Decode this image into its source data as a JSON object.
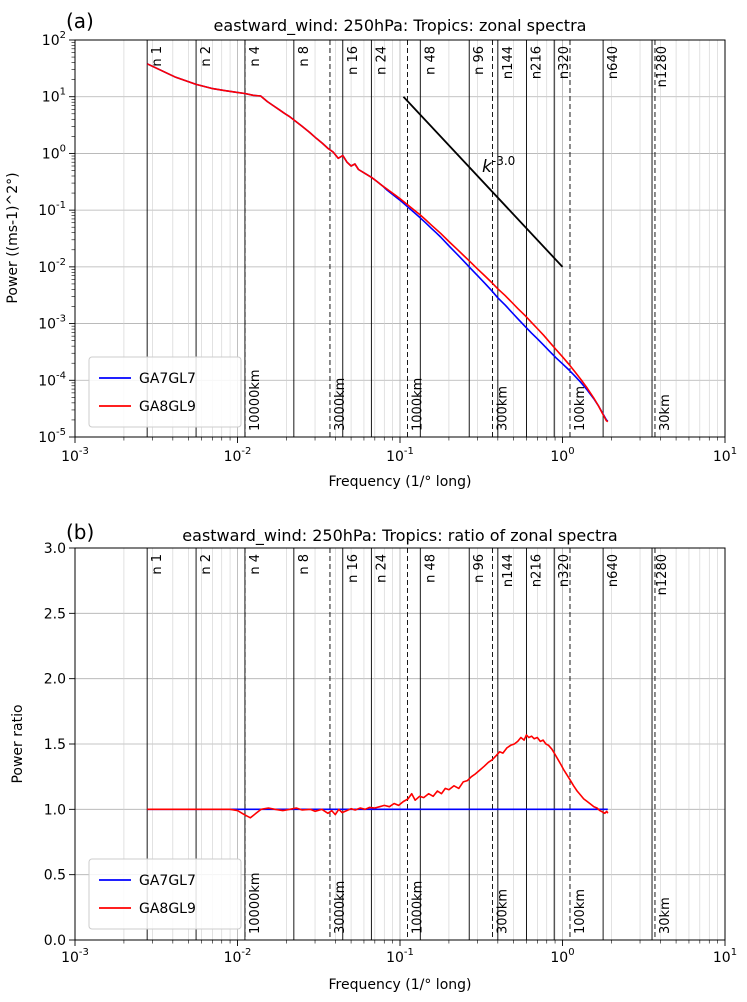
{
  "chart_data": [
    {
      "type": "line",
      "panel_label": "(a)",
      "title": "eastward_wind: 250hPa: Tropics: zonal spectra",
      "xlabel": "Frequency (1/° long)",
      "ylabel": "Power ((ms-1)^2°)",
      "xscale": "log",
      "yscale": "log",
      "xlim": [
        0.001,
        10
      ],
      "ylim": [
        1e-05,
        100
      ],
      "x_tick_exponents": [
        -3,
        -2,
        -1,
        0,
        1
      ],
      "y_tick_exponents": [
        2,
        1,
        0,
        -1,
        -2,
        -3,
        -4,
        -5
      ],
      "grid": true,
      "legend": {
        "position": "lower left",
        "entries": [
          {
            "label": "GA7GL7",
            "color": "#0000ff"
          },
          {
            "label": "GA8GL9",
            "color": "#ff0000"
          }
        ]
      },
      "wavenumber_lines": [
        {
          "label": "n 1",
          "x": 0.00278
        },
        {
          "label": "n 2",
          "x": 0.00556
        },
        {
          "label": "n 4",
          "x": 0.01111
        },
        {
          "label": "n 8",
          "x": 0.02222
        },
        {
          "label": "n 16",
          "x": 0.04444
        },
        {
          "label": "n 24",
          "x": 0.06667
        },
        {
          "label": "n 48",
          "x": 0.13333
        },
        {
          "label": "n 96",
          "x": 0.26667
        },
        {
          "label": "n144",
          "x": 0.4
        },
        {
          "label": "n216",
          "x": 0.6
        },
        {
          "label": "n320",
          "x": 0.88889
        },
        {
          "label": "n640",
          "x": 1.77778
        },
        {
          "label": "n1280",
          "x": 3.55556
        }
      ],
      "wavelength_lines": [
        {
          "label": "10000km",
          "x": 0.01112
        },
        {
          "label": "3000km",
          "x": 0.03707
        },
        {
          "label": "1000km",
          "x": 0.1112
        },
        {
          "label": "300km",
          "x": 0.3707
        },
        {
          "label": "100km",
          "x": 1.112
        },
        {
          "label": "30km",
          "x": 3.707
        }
      ],
      "reference_line": {
        "label": "k^-3.0",
        "x": [
          0.105,
          1.0
        ],
        "y": [
          10.0,
          0.01
        ],
        "color": "#000000"
      },
      "x": [
        0.00278,
        0.00417,
        0.00556,
        0.00694,
        0.00833,
        0.00972,
        0.01111,
        0.0125,
        0.01389,
        0.01528,
        0.01667,
        0.01806,
        0.01944,
        0.02083,
        0.02222,
        0.025,
        0.02778,
        0.03056,
        0.03333,
        0.03611,
        0.03889,
        0.04167,
        0.04444,
        0.04722,
        0.05,
        0.05278,
        0.05556,
        0.06111,
        0.06667,
        0.07222,
        0.07778,
        0.08333,
        0.08889,
        0.09444,
        0.1,
        0.11111,
        0.12222,
        0.13333,
        0.14444,
        0.15556,
        0.16667,
        0.17778,
        0.2,
        0.22222,
        0.24444,
        0.26667,
        0.3,
        0.33333,
        0.36667,
        0.4,
        0.44444,
        0.48889,
        0.53333,
        0.58889,
        0.64444,
        0.7,
        0.76667,
        0.83333,
        0.91111,
        1.0,
        1.08889,
        1.18889,
        1.3,
        1.42222,
        1.55556,
        1.66667,
        1.75556,
        1.81,
        1.86,
        1.9
      ],
      "series": [
        {
          "name": "GA7GL7",
          "color": "#0000ff",
          "y": [
            38,
            22,
            16.5,
            14,
            12.8,
            12,
            11.4,
            10.6,
            10.3,
            8.2,
            6.9,
            5.9,
            5.1,
            4.5,
            3.9,
            3.0,
            2.35,
            1.85,
            1.5,
            1.22,
            1.05,
            0.82,
            0.92,
            0.7,
            0.6,
            0.65,
            0.52,
            0.44,
            0.38,
            0.32,
            0.27,
            0.226,
            0.195,
            0.17,
            0.15,
            0.115,
            0.091,
            0.073,
            0.059,
            0.048,
            0.04,
            0.0336,
            0.0235,
            0.0172,
            0.013,
            0.01,
            0.007,
            0.0051,
            0.0038,
            0.00285,
            0.00211,
            0.00157,
            0.0012,
            0.00089,
            0.00068,
            0.00054,
            0.000416,
            0.000324,
            0.00025,
            0.000195,
            0.000155,
            0.00012,
            9.12e-05,
            6.67e-05,
            4.76e-05,
            3.5e-05,
            2.7e-05,
            2.31e-05,
            2.01e-05,
            1.91e-05
          ]
        },
        {
          "name": "GA8GL9",
          "color": "#ff0000",
          "y": [
            38,
            22,
            16.5,
            14,
            12.8,
            12,
            11.4,
            10.6,
            10.3,
            8.2,
            6.9,
            5.9,
            5.1,
            4.5,
            3.9,
            3.0,
            2.35,
            1.85,
            1.5,
            1.22,
            1.05,
            0.82,
            0.92,
            0.7,
            0.6,
            0.65,
            0.52,
            0.44,
            0.38,
            0.32,
            0.27,
            0.235,
            0.205,
            0.18,
            0.16,
            0.125,
            0.1,
            0.082,
            0.067,
            0.055,
            0.046,
            0.039,
            0.028,
            0.021,
            0.0162,
            0.0128,
            0.0092,
            0.0069,
            0.0053,
            0.0041,
            0.0031,
            0.00235,
            0.00182,
            0.00138,
            0.00105,
            0.00082,
            0.00062,
            0.00047,
            0.00035,
            0.00026,
            0.000195,
            0.000143,
            0.000103,
            7.2e-05,
            4.9e-05,
            3.5e-05,
            2.65e-05,
            2.25e-05,
            1.95e-05,
            1.85e-05
          ]
        }
      ]
    },
    {
      "type": "line",
      "panel_label": "(b)",
      "title": "eastward_wind: 250hPa: Tropics: ratio of zonal spectra",
      "xlabel": "Frequency (1/° long)",
      "ylabel": "Power ratio",
      "xscale": "log",
      "yscale": "linear",
      "xlim": [
        0.001,
        10
      ],
      "ylim": [
        0.0,
        3.0
      ],
      "x_tick_exponents": [
        -3,
        -2,
        -1,
        0,
        1
      ],
      "y_ticks": [
        0.0,
        0.5,
        1.0,
        1.5,
        2.0,
        2.5,
        3.0
      ],
      "y_tick_labels": [
        "0.0",
        "0.5",
        "1.0",
        "1.5",
        "2.0",
        "2.5",
        "3.0"
      ],
      "grid": true,
      "legend": {
        "position": "lower left",
        "entries": [
          {
            "label": "GA7GL7",
            "color": "#0000ff"
          },
          {
            "label": "GA8GL9",
            "color": "#ff0000"
          }
        ]
      },
      "wavenumber_lines": [
        {
          "label": "n 1",
          "x": 0.00278
        },
        {
          "label": "n 2",
          "x": 0.00556
        },
        {
          "label": "n 4",
          "x": 0.01111
        },
        {
          "label": "n 8",
          "x": 0.02222
        },
        {
          "label": "n 16",
          "x": 0.04444
        },
        {
          "label": "n 24",
          "x": 0.06667
        },
        {
          "label": "n 48",
          "x": 0.13333
        },
        {
          "label": "n 96",
          "x": 0.26667
        },
        {
          "label": "n144",
          "x": 0.4
        },
        {
          "label": "n216",
          "x": 0.6
        },
        {
          "label": "n320",
          "x": 0.88889
        },
        {
          "label": "n640",
          "x": 1.77778
        },
        {
          "label": "n1280",
          "x": 3.55556
        }
      ],
      "wavelength_lines": [
        {
          "label": "10000km",
          "x": 0.01112
        },
        {
          "label": "3000km",
          "x": 0.03707
        },
        {
          "label": "1000km",
          "x": 0.1112
        },
        {
          "label": "300km",
          "x": 0.3707
        },
        {
          "label": "100km",
          "x": 1.112
        },
        {
          "label": "30km",
          "x": 3.707
        }
      ],
      "series": [
        {
          "name": "GA7GL7",
          "color": "#0000ff",
          "x": [
            0.00278,
            1.9
          ],
          "y": [
            1.0,
            1.0
          ]
        },
        {
          "name": "GA8GL9",
          "color": "#ff0000",
          "x": [
            0.00278,
            0.004,
            0.006,
            0.008,
            0.009,
            0.01,
            0.011,
            0.012,
            0.013,
            0.014,
            0.0155,
            0.017,
            0.019,
            0.021,
            0.023,
            0.025,
            0.028,
            0.03,
            0.033,
            0.036,
            0.038,
            0.04,
            0.042,
            0.044,
            0.047,
            0.05,
            0.053,
            0.057,
            0.061,
            0.065,
            0.07,
            0.075,
            0.08,
            0.086,
            0.092,
            0.098,
            0.105,
            0.112,
            0.118,
            0.124,
            0.132,
            0.14,
            0.15,
            0.16,
            0.17,
            0.18,
            0.19,
            0.2,
            0.215,
            0.23,
            0.245,
            0.26,
            0.275,
            0.29,
            0.31,
            0.33,
            0.35,
            0.37,
            0.39,
            0.41,
            0.43,
            0.455,
            0.48,
            0.505,
            0.53,
            0.555,
            0.58,
            0.6,
            0.62,
            0.645,
            0.67,
            0.7,
            0.73,
            0.76,
            0.79,
            0.82,
            0.86,
            0.9,
            0.94,
            0.98,
            1.02,
            1.07,
            1.12,
            1.17,
            1.23,
            1.29,
            1.35,
            1.42,
            1.49,
            1.56,
            1.63,
            1.7,
            1.76,
            1.82,
            1.87,
            1.9
          ],
          "y": [
            1.0,
            1.0,
            1.0,
            1.0,
            1.0,
            0.99,
            0.96,
            0.935,
            0.97,
            1.0,
            1.01,
            1.0,
            0.99,
            1.0,
            1.01,
            0.995,
            1.0,
            0.985,
            1.0,
            0.97,
            0.99,
            0.96,
            1.0,
            0.975,
            0.99,
            1.005,
            0.995,
            1.01,
            1.0,
            1.015,
            1.01,
            1.02,
            1.03,
            1.02,
            1.045,
            1.03,
            1.06,
            1.08,
            1.12,
            1.07,
            1.1,
            1.09,
            1.12,
            1.1,
            1.14,
            1.12,
            1.16,
            1.15,
            1.18,
            1.16,
            1.21,
            1.22,
            1.25,
            1.27,
            1.3,
            1.33,
            1.36,
            1.38,
            1.41,
            1.44,
            1.43,
            1.47,
            1.49,
            1.5,
            1.52,
            1.55,
            1.53,
            1.57,
            1.55,
            1.56,
            1.54,
            1.55,
            1.52,
            1.53,
            1.5,
            1.49,
            1.46,
            1.42,
            1.38,
            1.34,
            1.3,
            1.26,
            1.22,
            1.18,
            1.14,
            1.11,
            1.08,
            1.06,
            1.04,
            1.02,
            1.01,
            0.99,
            0.98,
            0.97,
            0.985,
            0.97
          ]
        }
      ]
    }
  ],
  "colors": {
    "grid_major": "#b0b0b0",
    "grid_minor": "#cfcfcf",
    "axes": "#000000",
    "ga7gl7": "#0000ff",
    "ga8gl9": "#ff0000"
  }
}
